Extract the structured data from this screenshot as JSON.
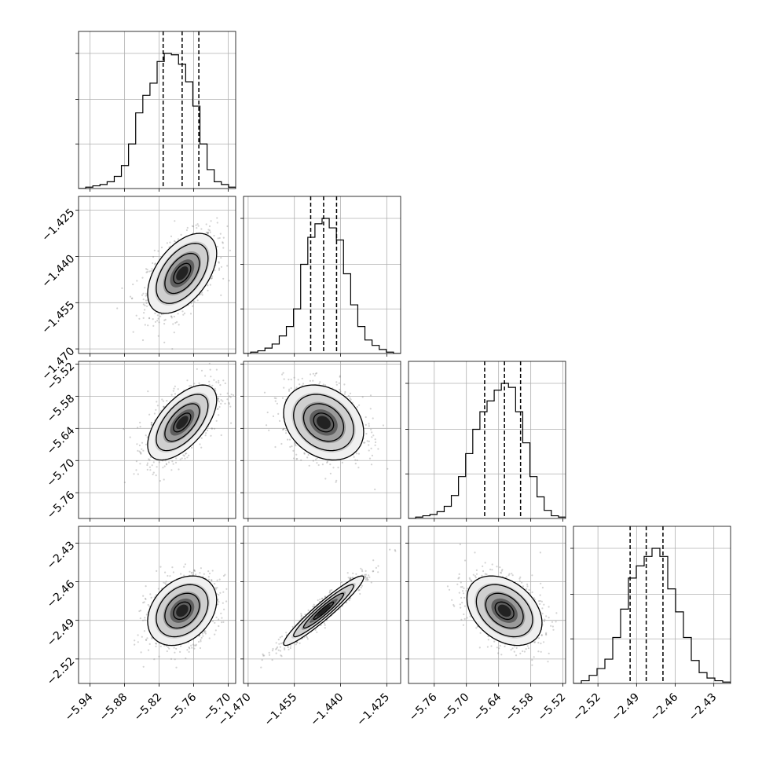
{
  "chart_data": {
    "type": "corner",
    "n_params": 4,
    "params": [
      {
        "ticks": [
          -5.94,
          -5.88,
          -5.82,
          -5.76,
          -5.7
        ],
        "tick_labels": [
          "−5.94",
          "−5.88",
          "−5.82",
          "−5.76",
          "−5.70"
        ],
        "range": [
          -5.96,
          -5.687
        ],
        "quantiles": [
          -5.813,
          -5.78,
          -5.751
        ]
      },
      {
        "ticks": [
          -1.47,
          -1.455,
          -1.44,
          -1.425
        ],
        "tick_labels": [
          "−1.470",
          "−1.455",
          "−1.440",
          "−1.425"
        ],
        "range": [
          -1.4715,
          -1.4205
        ],
        "quantiles": [
          -1.4497,
          -1.4455,
          -1.4413
        ]
      },
      {
        "ticks": [
          -5.76,
          -5.7,
          -5.64,
          -5.58,
          -5.52
        ],
        "tick_labels": [
          "−5.76",
          "−5.70",
          "−5.64",
          "−5.58",
          "−5.52"
        ],
        "range": [
          -5.808,
          -5.515
        ],
        "quantiles": [
          -5.666,
          -5.629,
          -5.599
        ]
      },
      {
        "ticks": [
          -2.52,
          -2.49,
          -2.46,
          -2.43
        ],
        "tick_labels": [
          "−2.52",
          "−2.49",
          "−2.46",
          "−2.43"
        ],
        "range": [
          -2.539,
          -2.417
        ],
        "quantiles": [
          -2.495,
          -2.4825,
          -2.4695
        ]
      }
    ],
    "histograms": [
      {
        "index": 0,
        "counts": [
          0,
          1,
          2,
          3,
          5,
          9,
          17,
          33,
          56,
          69,
          78,
          94,
          100,
          99,
          92,
          79,
          61,
          33,
          14,
          5,
          3,
          1
        ]
      },
      {
        "index": 1,
        "counts": [
          0,
          1,
          2,
          4,
          7,
          13,
          20,
          33,
          66,
          86,
          96,
          100,
          93,
          84,
          59,
          36,
          20,
          10,
          6,
          3,
          1,
          0
        ]
      },
      {
        "index": 2,
        "counts": [
          0,
          1,
          2,
          3,
          5,
          9,
          17,
          31,
          48,
          66,
          79,
          87,
          95,
          100,
          97,
          79,
          56,
          31,
          16,
          6,
          2,
          1
        ]
      },
      {
        "index": 3,
        "counts": [
          0,
          2,
          6,
          11,
          18,
          34,
          55,
          78,
          87,
          94,
          100,
          94,
          70,
          53,
          34,
          17,
          8,
          4,
          2,
          1
        ]
      }
    ],
    "pairs": [
      {
        "x": 0,
        "y": 1,
        "mean": [
          -5.78,
          -1.4455
        ],
        "sd": [
          0.03,
          0.0065
        ],
        "rho": 0.5
      },
      {
        "x": 0,
        "y": 2,
        "mean": [
          -5.78,
          -5.629
        ],
        "sd": [
          0.03,
          0.035
        ],
        "rho": 0.6
      },
      {
        "x": 1,
        "y": 2,
        "mean": [
          -1.4455,
          -5.629
        ],
        "sd": [
          0.0065,
          0.035
        ],
        "rho": -0.25
      },
      {
        "x": 0,
        "y": 3,
        "mean": [
          -5.78,
          -2.4825
        ],
        "sd": [
          0.03,
          0.0135
        ],
        "rho": 0.3
      },
      {
        "x": 1,
        "y": 3,
        "mean": [
          -1.4455,
          -2.4825
        ],
        "sd": [
          0.0065,
          0.0135
        ],
        "rho": 0.95
      },
      {
        "x": 2,
        "y": 3,
        "mean": [
          -5.629,
          -2.4825
        ],
        "sd": [
          0.035,
          0.0135
        ],
        "rho": -0.35
      }
    ],
    "grid": true,
    "colors": {
      "line": "#000000",
      "grid": "#b0b0b0",
      "points": "#808080"
    }
  }
}
